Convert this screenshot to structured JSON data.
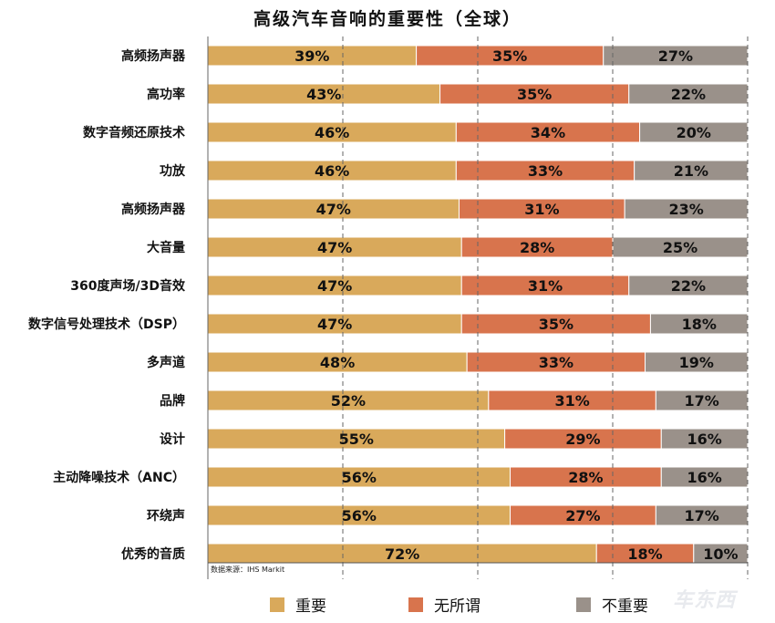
{
  "chart_data": {
    "type": "bar",
    "orientation": "horizontal",
    "stacked": "percent",
    "title": "高级汽车音响的重要性（全球）",
    "categories": [
      "高频扬声器",
      "高功率",
      "数字音频还原技术",
      "功放",
      "高频扬声器",
      "大音量",
      "360度声场/3D音效",
      "数字信号处理技术（DSP）",
      "多声道",
      "品牌",
      "设计",
      "主动降噪技术（ANC）",
      "环绕声",
      "优秀的音质"
    ],
    "series": [
      {
        "name": "重要",
        "color": "#D9A95B",
        "values": [
          39,
          43,
          46,
          46,
          47,
          47,
          47,
          47,
          48,
          52,
          55,
          56,
          56,
          72
        ]
      },
      {
        "name": "无所谓",
        "color": "#D8744D",
        "values": [
          35,
          35,
          34,
          33,
          31,
          28,
          31,
          35,
          33,
          31,
          29,
          28,
          27,
          18
        ]
      },
      {
        "name": "不重要",
        "color": "#9A918A",
        "values": [
          27,
          22,
          20,
          21,
          23,
          25,
          22,
          18,
          19,
          17,
          16,
          16,
          17,
          10
        ]
      }
    ],
    "value_suffix": "%",
    "xlim": [
      0,
      100
    ],
    "grid": "vertical dashed",
    "legend_position": "bottom"
  },
  "source_note": "数据来源：IHS Markit",
  "watermark": "车东西"
}
